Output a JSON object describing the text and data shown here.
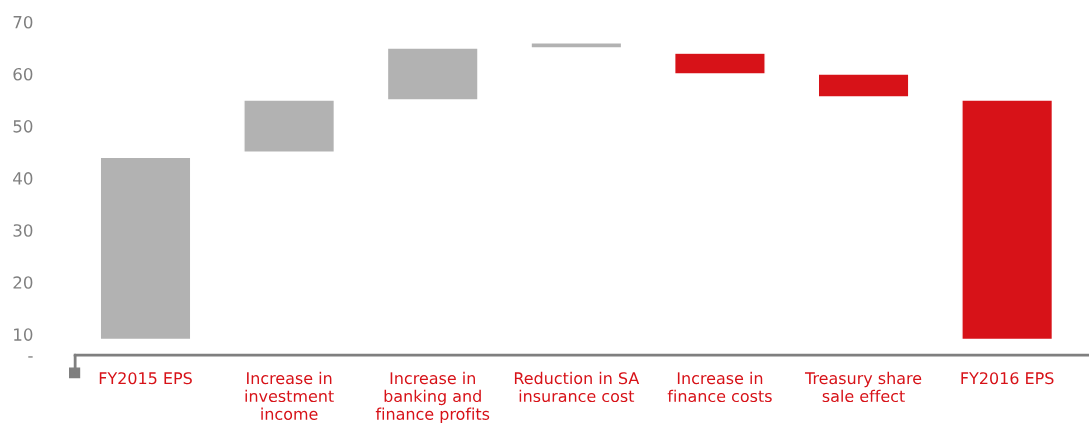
{
  "chart_data": {
    "type": "bar",
    "categories": [
      "FY2015 EPS",
      "Increase in investment income",
      "Increase in banking and finance profits",
      "Reduction in SA insurance cost",
      "Increase in finance costs",
      "Treasury share sale effect",
      "FY2016 EPS"
    ],
    "values": [
      35,
      10,
      10,
      1,
      -4,
      -4.4,
      46
    ],
    "base": [
      9,
      45,
      55,
      65,
      64,
      60,
      9
    ],
    "colors": [
      "#b2b2b2",
      "#b2b2b2",
      "#b2b2b2",
      "#b2b2b2",
      "#d71218",
      "#d71218",
      "#d71218"
    ],
    "ylim": [
      6,
      70
    ],
    "yticks": [
      {
        "value": 6,
        "label": "-"
      },
      10,
      20,
      30,
      40,
      50,
      60,
      70
    ],
    "grid": false
  }
}
